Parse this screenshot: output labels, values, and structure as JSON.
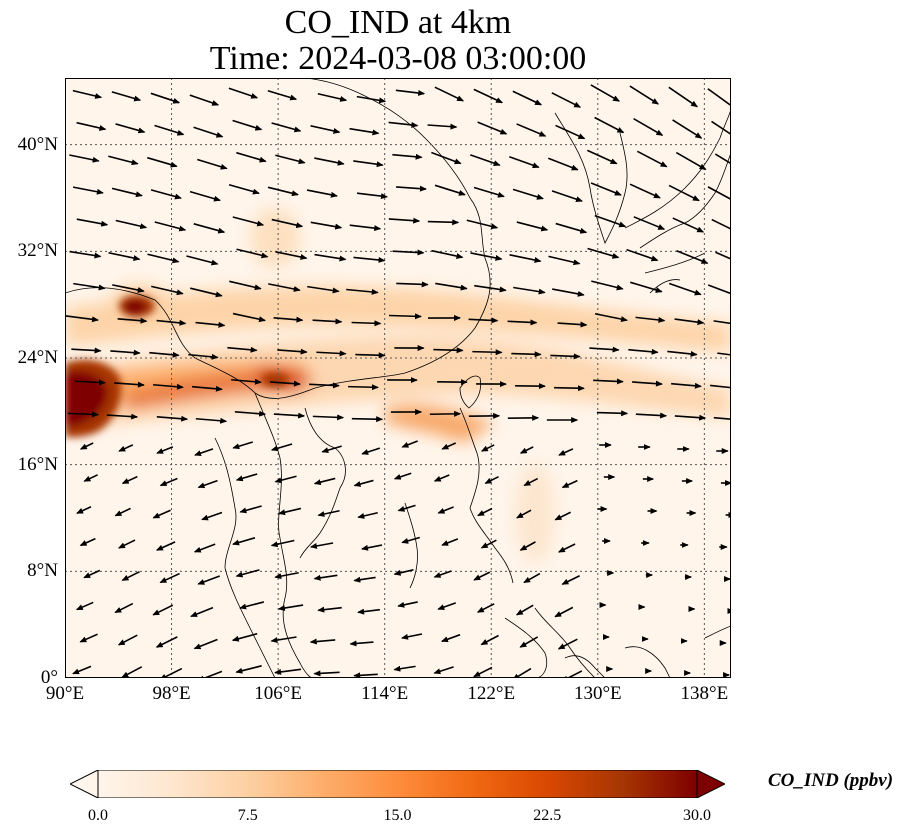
{
  "title": {
    "line1": "CO_IND at 4km",
    "line2": "Time: 2024-03-08 03:00:00"
  },
  "map": {
    "lon_range": [
      90,
      140
    ],
    "lat_range": [
      0,
      45
    ],
    "gridlines": "dotted",
    "lat_ticks": [
      {
        "value": 0,
        "label": "0°"
      },
      {
        "value": 8,
        "label": "8°N"
      },
      {
        "value": 16,
        "label": "16°N"
      },
      {
        "value": 24,
        "label": "24°N"
      },
      {
        "value": 32,
        "label": "32°N"
      },
      {
        "value": 40,
        "label": "40°N"
      }
    ],
    "lon_ticks": [
      {
        "value": 90,
        "label": "90°E"
      },
      {
        "value": 98,
        "label": "98°E"
      },
      {
        "value": 106,
        "label": "106°E"
      },
      {
        "value": 114,
        "label": "114°E"
      },
      {
        "value": 122,
        "label": "122°E"
      },
      {
        "value": 130,
        "label": "130°E"
      },
      {
        "value": 138,
        "label": "138°E"
      }
    ],
    "field": "CO_IND",
    "vectors": "wind arrows"
  },
  "colorbar": {
    "label": "CO_IND (ppbv)",
    "min": 0.0,
    "max": 30.0,
    "extend": "both",
    "ticks": [
      "0.0",
      "7.5",
      "15.0",
      "22.5",
      "30.0"
    ],
    "colors": [
      "#fff5eb",
      "#fee6ce",
      "#fdd0a2",
      "#fdae6b",
      "#fd8d3c",
      "#f16913",
      "#d94801",
      "#a63603",
      "#7f0000"
    ]
  }
}
